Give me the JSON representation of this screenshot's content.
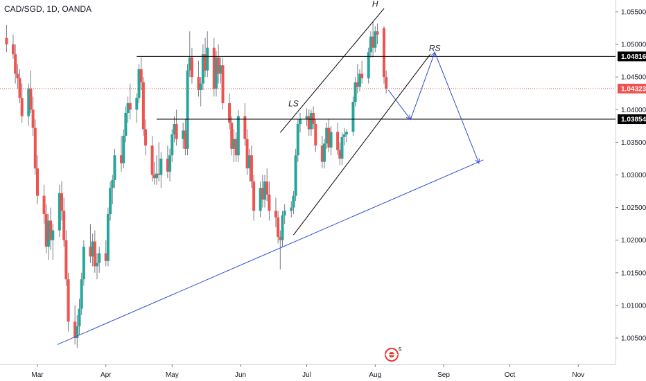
{
  "chart_data": {
    "type": "candlestick",
    "title": "CAD/SGD, 1D, OANDA",
    "symbol": "CAD/SGD",
    "interval": "1D",
    "source": "OANDA",
    "ylim": [
      1.0025,
      1.0568
    ],
    "y_ticks": [
      "1.00500",
      "1.01000",
      "1.01500",
      "1.02000",
      "1.02500",
      "1.03000",
      "1.03500",
      "1.04000",
      "1.04500",
      "1.05000",
      "1.05500"
    ],
    "x_ticks": [
      "Mar",
      "Apr",
      "May",
      "Jun",
      "Jul",
      "Aug",
      "Sep",
      "Oct",
      "Nov"
    ],
    "grid": false,
    "colors": {
      "up": "#26a69a",
      "down": "#ef5350",
      "wick": "#787b86",
      "black_line": "#000000",
      "blue_line": "#2b4cd9",
      "current_price": "#ef5350"
    },
    "horizontal_levels": [
      {
        "label": "1.04816",
        "value": 1.04816,
        "color": "#000000"
      },
      {
        "label": "1.03854",
        "value": 1.03854,
        "color": "#000000"
      }
    ],
    "current_price": {
      "label": "1.04323",
      "value": 1.04323
    },
    "annotations": [
      {
        "text": "LS",
        "date": "Jun 25",
        "price": 1.0405
      },
      {
        "text": "H",
        "date": "Aug 1",
        "price": 1.0558
      },
      {
        "text": "RS",
        "date": "Aug 28",
        "price": 1.049
      }
    ],
    "trendlines": [
      {
        "color": "#2b4cd9",
        "from": [
          "Mar 10",
          1.004
        ],
        "to": [
          "Sep 19",
          1.0323
        ]
      },
      {
        "color": "#000000",
        "from": [
          "Jun 19",
          1.0365
        ],
        "to": [
          "Aug 5",
          1.0555
        ]
      },
      {
        "color": "#000000",
        "from": [
          "Jun 25",
          1.0208
        ],
        "to": [
          "Aug 26",
          1.0485
        ]
      }
    ],
    "projection": {
      "color": "#2b4cd9",
      "points": [
        [
          "Aug 7",
          1.043
        ],
        [
          "Aug 17",
          1.0385
        ],
        [
          "Aug 28",
          1.0488
        ],
        [
          "Sep 17",
          1.0318
        ]
      ]
    },
    "candles": [
      {
        "d": "Feb 15",
        "o": 1.051,
        "h": 1.053,
        "l": 1.0488,
        "c": 1.05
      },
      {
        "d": "Feb 18",
        "o": 1.05,
        "h": 1.0515,
        "l": 1.0478,
        "c": 1.0485
      },
      {
        "d": "Feb 19",
        "o": 1.0485,
        "h": 1.05,
        "l": 1.044,
        "c": 1.0455
      },
      {
        "d": "Feb 20",
        "o": 1.0455,
        "h": 1.047,
        "l": 1.0432,
        "c": 1.0448
      },
      {
        "d": "Feb 21",
        "o": 1.0448,
        "h": 1.0462,
        "l": 1.041,
        "c": 1.0418
      },
      {
        "d": "Feb 22",
        "o": 1.0418,
        "h": 1.044,
        "l": 1.038,
        "c": 1.039
      },
      {
        "d": "Feb 25",
        "o": 1.039,
        "h": 1.044,
        "l": 1.0375,
        "c": 1.0432
      },
      {
        "d": "Feb 26",
        "o": 1.0432,
        "h": 1.046,
        "l": 1.0395,
        "c": 1.04
      },
      {
        "d": "Feb 27",
        "o": 1.04,
        "h": 1.042,
        "l": 1.036,
        "c": 1.0372
      },
      {
        "d": "Feb 28",
        "o": 1.0372,
        "h": 1.0385,
        "l": 1.03,
        "c": 1.031
      },
      {
        "d": "Mar 1",
        "o": 1.031,
        "h": 1.033,
        "l": 1.0255,
        "c": 1.0268
      },
      {
        "d": "Mar 4",
        "o": 1.0268,
        "h": 1.0285,
        "l": 1.0225,
        "c": 1.024
      },
      {
        "d": "Mar 5",
        "o": 1.024,
        "h": 1.0255,
        "l": 1.018,
        "c": 1.019
      },
      {
        "d": "Mar 6",
        "o": 1.019,
        "h": 1.024,
        "l": 1.017,
        "c": 1.023
      },
      {
        "d": "Mar 7",
        "o": 1.023,
        "h": 1.025,
        "l": 1.0185,
        "c": 1.02
      },
      {
        "d": "Mar 8",
        "o": 1.02,
        "h": 1.0225,
        "l": 1.017,
        "c": 1.0215
      },
      {
        "d": "Mar 11",
        "o": 1.0215,
        "h": 1.0285,
        "l": 1.0205,
        "c": 1.0272
      },
      {
        "d": "Mar 12",
        "o": 1.0272,
        "h": 1.029,
        "l": 1.023,
        "c": 1.0245
      },
      {
        "d": "Mar 13",
        "o": 1.0245,
        "h": 1.0265,
        "l": 1.019,
        "c": 1.02
      },
      {
        "d": "Mar 14",
        "o": 1.02,
        "h": 1.0215,
        "l": 1.013,
        "c": 1.014
      },
      {
        "d": "Mar 15",
        "o": 1.014,
        "h": 1.015,
        "l": 1.006,
        "c": 1.0075
      },
      {
        "d": "Mar 18",
        "o": 1.0075,
        "h": 1.01,
        "l": 1.004,
        "c": 1.005
      },
      {
        "d": "Mar 19",
        "o": 1.005,
        "h": 1.0085,
        "l": 1.0035,
        "c": 1.0068
      },
      {
        "d": "Mar 20",
        "o": 1.0068,
        "h": 1.011,
        "l": 1.0055,
        "c": 1.0095
      },
      {
        "d": "Mar 21",
        "o": 1.0095,
        "h": 1.015,
        "l": 1.0085,
        "c": 1.014
      },
      {
        "d": "Mar 22",
        "o": 1.014,
        "h": 1.02,
        "l": 1.013,
        "c": 1.019
      },
      {
        "d": "Mar 25",
        "o": 1.019,
        "h": 1.0225,
        "l": 1.0165,
        "c": 1.0175
      },
      {
        "d": "Mar 26",
        "o": 1.0175,
        "h": 1.021,
        "l": 1.016,
        "c": 1.0198
      },
      {
        "d": "Mar 27",
        "o": 1.0198,
        "h": 1.0215,
        "l": 1.015,
        "c": 1.016
      },
      {
        "d": "Mar 28",
        "o": 1.016,
        "h": 1.018,
        "l": 1.014,
        "c": 1.0165
      },
      {
        "d": "Mar 29",
        "o": 1.0165,
        "h": 1.019,
        "l": 1.015,
        "c": 1.018
      },
      {
        "d": "Apr 1",
        "o": 1.018,
        "h": 1.02,
        "l": 1.016,
        "c": 1.0168
      },
      {
        "d": "Apr 2",
        "o": 1.0168,
        "h": 1.025,
        "l": 1.016,
        "c": 1.024
      },
      {
        "d": "Apr 3",
        "o": 1.024,
        "h": 1.029,
        "l": 1.023,
        "c": 1.028
      },
      {
        "d": "Apr 4",
        "o": 1.028,
        "h": 1.03,
        "l": 1.0255,
        "c": 1.0292
      },
      {
        "d": "Apr 5",
        "o": 1.0292,
        "h": 1.034,
        "l": 1.028,
        "c": 1.033
      },
      {
        "d": "Apr 8",
        "o": 1.033,
        "h": 1.036,
        "l": 1.0305,
        "c": 1.0318
      },
      {
        "d": "Apr 9",
        "o": 1.0318,
        "h": 1.037,
        "l": 1.031,
        "c": 1.036
      },
      {
        "d": "Apr 10",
        "o": 1.036,
        "h": 1.0405,
        "l": 1.035,
        "c": 1.0395
      },
      {
        "d": "Apr 11",
        "o": 1.0395,
        "h": 1.042,
        "l": 1.038,
        "c": 1.041
      },
      {
        "d": "Apr 12",
        "o": 1.041,
        "h": 1.044,
        "l": 1.0385,
        "c": 1.04
      },
      {
        "d": "Apr 15",
        "o": 1.04,
        "h": 1.0425,
        "l": 1.038,
        "c": 1.0418
      },
      {
        "d": "Apr 16",
        "o": 1.0418,
        "h": 1.047,
        "l": 1.041,
        "c": 1.0462
      },
      {
        "d": "Apr 17",
        "o": 1.0462,
        "h": 1.048,
        "l": 1.043,
        "c": 1.0442
      },
      {
        "d": "Apr 18",
        "o": 1.0442,
        "h": 1.045,
        "l": 1.036,
        "c": 1.037
      },
      {
        "d": "Apr 19",
        "o": 1.037,
        "h": 1.0385,
        "l": 1.033,
        "c": 1.0345
      },
      {
        "d": "Apr 22",
        "o": 1.0345,
        "h": 1.036,
        "l": 1.029,
        "c": 1.03
      },
      {
        "d": "Apr 23",
        "o": 1.03,
        "h": 1.032,
        "l": 1.0285,
        "c": 1.0295
      },
      {
        "d": "Apr 24",
        "o": 1.0295,
        "h": 1.033,
        "l": 1.0285,
        "c": 1.0302
      },
      {
        "d": "Apr 25",
        "o": 1.0302,
        "h": 1.035,
        "l": 1.029,
        "c": 1.03
      },
      {
        "d": "Apr 26",
        "o": 1.03,
        "h": 1.0335,
        "l": 1.028,
        "c": 1.0325
      },
      {
        "d": "Apr 29",
        "o": 1.0325,
        "h": 1.0345,
        "l": 1.0295,
        "c": 1.0305
      },
      {
        "d": "Apr 30",
        "o": 1.0305,
        "h": 1.034,
        "l": 1.029,
        "c": 1.033
      },
      {
        "d": "May 1",
        "o": 1.033,
        "h": 1.037,
        "l": 1.032,
        "c": 1.0362
      },
      {
        "d": "May 2",
        "o": 1.0362,
        "h": 1.039,
        "l": 1.035,
        "c": 1.0378
      },
      {
        "d": "May 3",
        "o": 1.0378,
        "h": 1.04,
        "l": 1.0345,
        "c": 1.0355
      },
      {
        "d": "May 6",
        "o": 1.0355,
        "h": 1.038,
        "l": 1.034,
        "c": 1.0368
      },
      {
        "d": "May 7",
        "o": 1.0368,
        "h": 1.0385,
        "l": 1.033,
        "c": 1.034
      },
      {
        "d": "May 8",
        "o": 1.034,
        "h": 1.047,
        "l": 1.033,
        "c": 1.046
      },
      {
        "d": "May 9",
        "o": 1.046,
        "h": 1.052,
        "l": 1.045,
        "c": 1.048
      },
      {
        "d": "May 10",
        "o": 1.048,
        "h": 1.0495,
        "l": 1.044,
        "c": 1.045
      },
      {
        "d": "May 13",
        "o": 1.045,
        "h": 1.0475,
        "l": 1.042,
        "c": 1.043
      },
      {
        "d": "May 14",
        "o": 1.043,
        "h": 1.045,
        "l": 1.0405,
        "c": 1.044
      },
      {
        "d": "May 15",
        "o": 1.044,
        "h": 1.05,
        "l": 1.043,
        "c": 1.0485
      },
      {
        "d": "May 16",
        "o": 1.0485,
        "h": 1.051,
        "l": 1.045,
        "c": 1.046
      },
      {
        "d": "May 17",
        "o": 1.046,
        "h": 1.052,
        "l": 1.045,
        "c": 1.0495
      },
      {
        "d": "May 20",
        "o": 1.0495,
        "h": 1.051,
        "l": 1.042,
        "c": 1.0432
      },
      {
        "d": "May 21",
        "o": 1.0432,
        "h": 1.049,
        "l": 1.042,
        "c": 1.048
      },
      {
        "d": "May 22",
        "o": 1.048,
        "h": 1.05,
        "l": 1.044,
        "c": 1.0455
      },
      {
        "d": "May 23",
        "o": 1.0455,
        "h": 1.048,
        "l": 1.044,
        "c": 1.0468
      },
      {
        "d": "May 24",
        "o": 1.0468,
        "h": 1.048,
        "l": 1.04,
        "c": 1.041
      },
      {
        "d": "May 27",
        "o": 1.041,
        "h": 1.0425,
        "l": 1.037,
        "c": 1.038
      },
      {
        "d": "May 28",
        "o": 1.038,
        "h": 1.039,
        "l": 1.033,
        "c": 1.034
      },
      {
        "d": "May 29",
        "o": 1.034,
        "h": 1.037,
        "l": 1.032,
        "c": 1.0355
      },
      {
        "d": "May 30",
        "o": 1.0355,
        "h": 1.0365,
        "l": 1.032,
        "c": 1.033
      },
      {
        "d": "May 31",
        "o": 1.033,
        "h": 1.04,
        "l": 1.032,
        "c": 1.039
      },
      {
        "d": "Jun 3",
        "o": 1.039,
        "h": 1.041,
        "l": 1.0345,
        "c": 1.0355
      },
      {
        "d": "Jun 4",
        "o": 1.0355,
        "h": 1.037,
        "l": 1.03,
        "c": 1.031
      },
      {
        "d": "Jun 5",
        "o": 1.031,
        "h": 1.034,
        "l": 1.029,
        "c": 1.033
      },
      {
        "d": "Jun 6",
        "o": 1.033,
        "h": 1.0345,
        "l": 1.028,
        "c": 1.029
      },
      {
        "d": "Jun 7",
        "o": 1.029,
        "h": 1.03,
        "l": 1.023,
        "c": 1.0245
      },
      {
        "d": "Jun 10",
        "o": 1.0245,
        "h": 1.029,
        "l": 1.0235,
        "c": 1.028
      },
      {
        "d": "Jun 11",
        "o": 1.028,
        "h": 1.03,
        "l": 1.025,
        "c": 1.0262
      },
      {
        "d": "Jun 12",
        "o": 1.0262,
        "h": 1.03,
        "l": 1.025,
        "c": 1.029
      },
      {
        "d": "Jun 13",
        "o": 1.029,
        "h": 1.031,
        "l": 1.026,
        "c": 1.027
      },
      {
        "d": "Jun 14",
        "o": 1.027,
        "h": 1.029,
        "l": 1.023,
        "c": 1.0245
      },
      {
        "d": "Jun 17",
        "o": 1.0245,
        "h": 1.0265,
        "l": 1.022,
        "c": 1.0235
      },
      {
        "d": "Jun 18",
        "o": 1.0235,
        "h": 1.0245,
        "l": 1.0195,
        "c": 1.0205
      },
      {
        "d": "Jun 19",
        "o": 1.0205,
        "h": 1.0215,
        "l": 1.0155,
        "c": 1.02
      },
      {
        "d": "Jun 20",
        "o": 1.02,
        "h": 1.0245,
        "l": 1.019,
        "c": 1.0238
      },
      {
        "d": "Jun 21",
        "o": 1.0238,
        "h": 1.0255,
        "l": 1.0225,
        "c": 1.0245
      },
      {
        "d": "Jun 24",
        "o": 1.0245,
        "h": 1.026,
        "l": 1.0235,
        "c": 1.025
      },
      {
        "d": "Jun 25",
        "o": 1.025,
        "h": 1.0275,
        "l": 1.024,
        "c": 1.0268
      },
      {
        "d": "Jun 26",
        "o": 1.0268,
        "h": 1.034,
        "l": 1.026,
        "c": 1.033
      },
      {
        "d": "Jun 27",
        "o": 1.033,
        "h": 1.0385,
        "l": 1.032,
        "c": 1.0378
      },
      {
        "d": "Jun 28",
        "o": 1.0378,
        "h": 1.0395,
        "l": 1.0365,
        "c": 1.0385
      },
      {
        "d": "Jul 1",
        "o": 1.0385,
        "h": 1.0402,
        "l": 1.0375,
        "c": 1.039
      },
      {
        "d": "Jul 2",
        "o": 1.039,
        "h": 1.04,
        "l": 1.036,
        "c": 1.037
      },
      {
        "d": "Jul 3",
        "o": 1.037,
        "h": 1.04,
        "l": 1.036,
        "c": 1.0395
      },
      {
        "d": "Jul 4",
        "o": 1.0395,
        "h": 1.0405,
        "l": 1.037,
        "c": 1.0378
      },
      {
        "d": "Jul 5",
        "o": 1.0378,
        "h": 1.0385,
        "l": 1.0335,
        "c": 1.0345
      },
      {
        "d": "Jul 8",
        "o": 1.0345,
        "h": 1.036,
        "l": 1.031,
        "c": 1.032
      },
      {
        "d": "Jul 9",
        "o": 1.032,
        "h": 1.0355,
        "l": 1.031,
        "c": 1.0348
      },
      {
        "d": "Jul 10",
        "o": 1.0348,
        "h": 1.038,
        "l": 1.034,
        "c": 1.0372
      },
      {
        "d": "Jul 11",
        "o": 1.0372,
        "h": 1.0385,
        "l": 1.0335,
        "c": 1.0342
      },
      {
        "d": "Jul 12",
        "o": 1.0342,
        "h": 1.0375,
        "l": 1.033,
        "c": 1.0366
      },
      {
        "d": "Jul 15",
        "o": 1.0366,
        "h": 1.038,
        "l": 1.033,
        "c": 1.0338
      },
      {
        "d": "Jul 16",
        "o": 1.0338,
        "h": 1.035,
        "l": 1.0315,
        "c": 1.0325
      },
      {
        "d": "Jul 17",
        "o": 1.0325,
        "h": 1.0365,
        "l": 1.0315,
        "c": 1.0358
      },
      {
        "d": "Jul 18",
        "o": 1.0358,
        "h": 1.0372,
        "l": 1.0345,
        "c": 1.0362
      },
      {
        "d": "Jul 19",
        "o": 1.0362,
        "h": 1.037,
        "l": 1.035,
        "c": 1.0366
      },
      {
        "d": "Jul 22",
        "o": 1.0366,
        "h": 1.042,
        "l": 1.036,
        "c": 1.0412
      },
      {
        "d": "Jul 23",
        "o": 1.0412,
        "h": 1.045,
        "l": 1.0405,
        "c": 1.0442
      },
      {
        "d": "Jul 24",
        "o": 1.0442,
        "h": 1.047,
        "l": 1.0425,
        "c": 1.0435
      },
      {
        "d": "Jul 25",
        "o": 1.0435,
        "h": 1.0462,
        "l": 1.0428,
        "c": 1.0455
      },
      {
        "d": "Jul 26",
        "o": 1.0455,
        "h": 1.0475,
        "l": 1.044,
        "c": 1.0448
      },
      {
        "d": "Jul 29",
        "o": 1.0448,
        "h": 1.0495,
        "l": 1.044,
        "c": 1.0488
      },
      {
        "d": "Jul 30",
        "o": 1.0488,
        "h": 1.052,
        "l": 1.048,
        "c": 1.0512
      },
      {
        "d": "Jul 31",
        "o": 1.0512,
        "h": 1.0535,
        "l": 1.048,
        "c": 1.0495
      },
      {
        "d": "Aug 1",
        "o": 1.0495,
        "h": 1.0528,
        "l": 1.0488,
        "c": 1.052
      },
      {
        "d": "Aug 2",
        "o": 1.052,
        "h": 1.0532,
        "l": 1.05,
        "c": 1.0515
      },
      {
        "d": "Aug 5",
        "o": 1.0525,
        "h": 1.0528,
        "l": 1.044,
        "c": 1.045
      },
      {
        "d": "Aug 6",
        "o": 1.045,
        "h": 1.046,
        "l": 1.0425,
        "c": 1.0432
      }
    ]
  },
  "watermark": {
    "name": "tradingview-logo",
    "badge": "5"
  }
}
